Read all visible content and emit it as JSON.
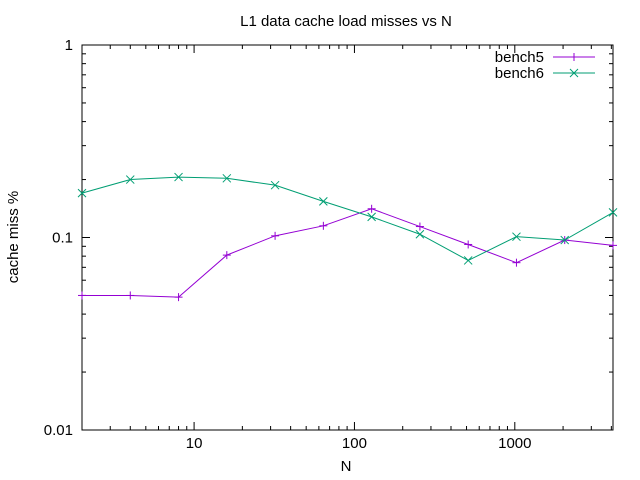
{
  "chart_data": {
    "type": "line",
    "title": "L1 data cache load misses vs N",
    "xlabel": "N",
    "ylabel": "cache miss %",
    "x_scale": "log",
    "y_scale": "log",
    "xlim": [
      2,
      4096
    ],
    "ylim": [
      0.01,
      1
    ],
    "grid": false,
    "legend_position": "top-right",
    "x_ticks": [
      {
        "value": 10,
        "label": "10"
      },
      {
        "value": 100,
        "label": "100"
      },
      {
        "value": 1000,
        "label": "1000"
      }
    ],
    "y_ticks": [
      {
        "value": 0.01,
        "label": "0.01"
      },
      {
        "value": 0.1,
        "label": "0.1"
      },
      {
        "value": 1,
        "label": "1"
      }
    ],
    "x": [
      2,
      4,
      8,
      16,
      32,
      64,
      128,
      256,
      512,
      1024,
      2048,
      4096
    ],
    "series": [
      {
        "name": "bench5",
        "color": "#9400d3",
        "marker": "plus",
        "values": [
          0.05,
          0.05,
          0.049,
          0.081,
          0.102,
          0.115,
          0.141,
          0.114,
          0.092,
          0.074,
          0.097,
          0.091
        ]
      },
      {
        "name": "bench6",
        "color": "#009e73",
        "marker": "cross",
        "values": [
          0.17,
          0.2,
          0.206,
          0.203,
          0.187,
          0.154,
          0.128,
          0.104,
          0.076,
          0.101,
          0.097,
          0.135
        ]
      }
    ]
  }
}
